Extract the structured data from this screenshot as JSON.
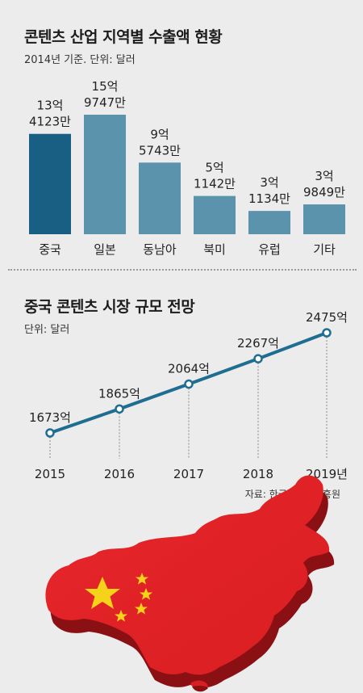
{
  "chart_data": [
    {
      "type": "bar",
      "title": "콘텐츠 산업 지역별 수출액 현황",
      "subtitle": "2014년 기준. 단위: 달러",
      "categories": [
        "중국",
        "일본",
        "동남아",
        "북미",
        "유럽",
        "기타"
      ],
      "values": [
        1341230000,
        1597470000,
        957430000,
        511420000,
        311340000,
        398490000
      ],
      "data_labels": [
        [
          "13억",
          "4123만"
        ],
        [
          "15억",
          "9747만"
        ],
        [
          "9억",
          "5743만"
        ],
        [
          "5억",
          "1142만"
        ],
        [
          "3억",
          "1134만"
        ],
        [
          "3억",
          "9849만"
        ]
      ],
      "colors": [
        "#195e83",
        "#5a93ab",
        "#5a93ab",
        "#5a93ab",
        "#5a93ab",
        "#5a93ab"
      ]
    },
    {
      "type": "line",
      "title": "중국 콘텐츠 시장 규모 전망",
      "subtitle": "단위: 달러",
      "categories": [
        "2015",
        "2016",
        "2017",
        "2018",
        "2019년"
      ],
      "values": [
        167300000000,
        186500000000,
        206400000000,
        226700000000,
        247500000000
      ],
      "data_labels": [
        "1673억",
        "1865억",
        "2064억",
        "2267억",
        "2475억"
      ],
      "color": "#1f6e92"
    }
  ],
  "source": "자료: 한국콘텐츠진흥원",
  "map_image": "china-map-with-flag"
}
